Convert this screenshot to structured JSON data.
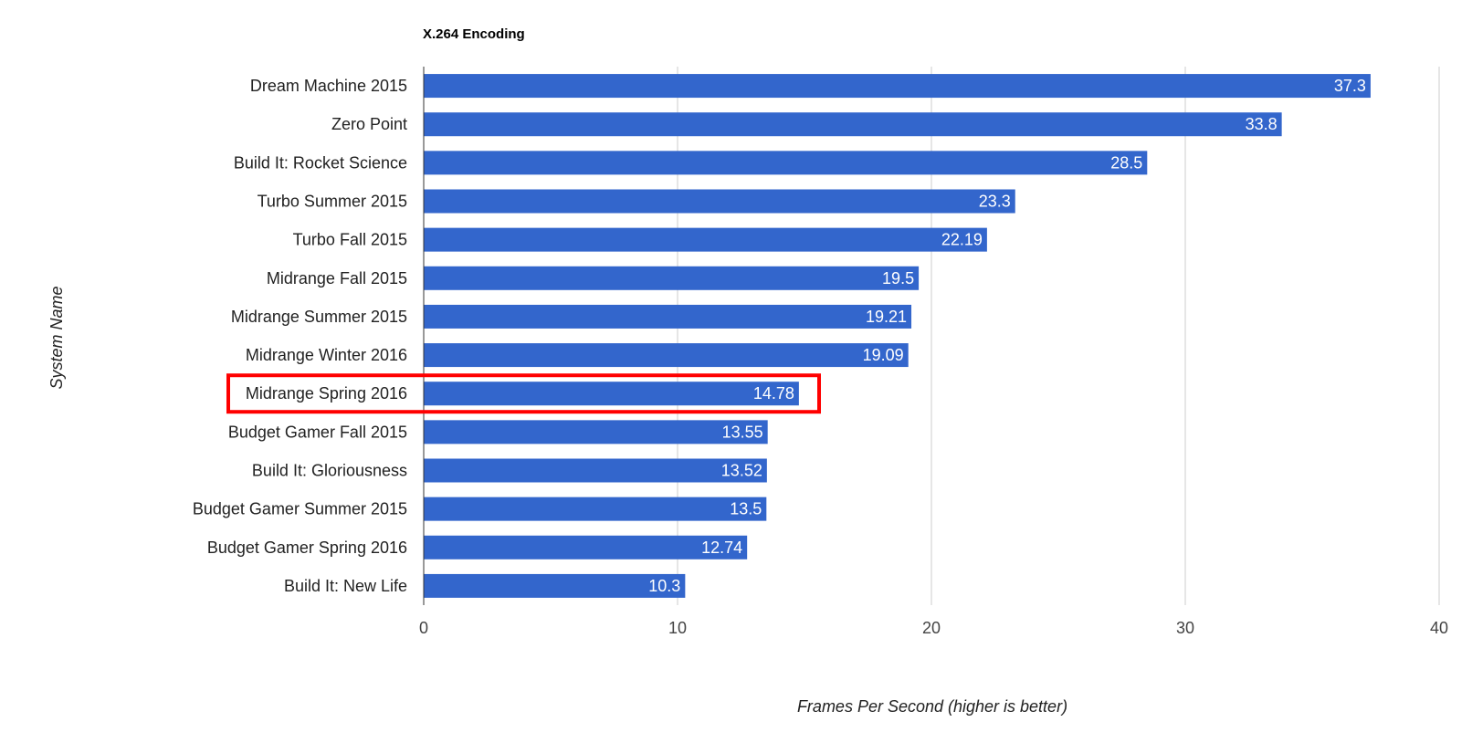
{
  "chart_data": {
    "type": "bar",
    "orientation": "horizontal",
    "title": "X.264 Encoding",
    "xlabel": "Frames Per Second (higher is better)",
    "ylabel": "System Name",
    "xlim": [
      0,
      40
    ],
    "xticks": [
      "0",
      "10",
      "20",
      "30",
      "40"
    ],
    "grid": true,
    "bar_color": "#3366cc",
    "highlight_color": "#ff0000",
    "highlighted_category": "Midrange Spring 2016",
    "categories": [
      "Dream Machine 2015",
      "Zero Point",
      "Build It: Rocket Science",
      "Turbo Summer 2015",
      "Turbo Fall 2015",
      "Midrange Fall 2015",
      "Midrange Summer 2015",
      "Midrange Winter 2016",
      "Midrange Spring 2016",
      "Budget Gamer Fall 2015",
      "Build It: Gloriousness",
      "Budget Gamer Summer 2015",
      "Budget Gamer Spring 2016",
      "Build It: New Life"
    ],
    "values": [
      37.3,
      33.8,
      28.5,
      23.3,
      22.19,
      19.5,
      19.21,
      19.09,
      14.78,
      13.55,
      13.52,
      13.5,
      12.74,
      10.3
    ],
    "value_labels": [
      "37.3",
      "33.8",
      "28.5",
      "23.3",
      "22.19",
      "19.5",
      "19.21",
      "19.09",
      "14.78",
      "13.55",
      "13.52",
      "13.5",
      "12.74",
      "10.3"
    ]
  }
}
